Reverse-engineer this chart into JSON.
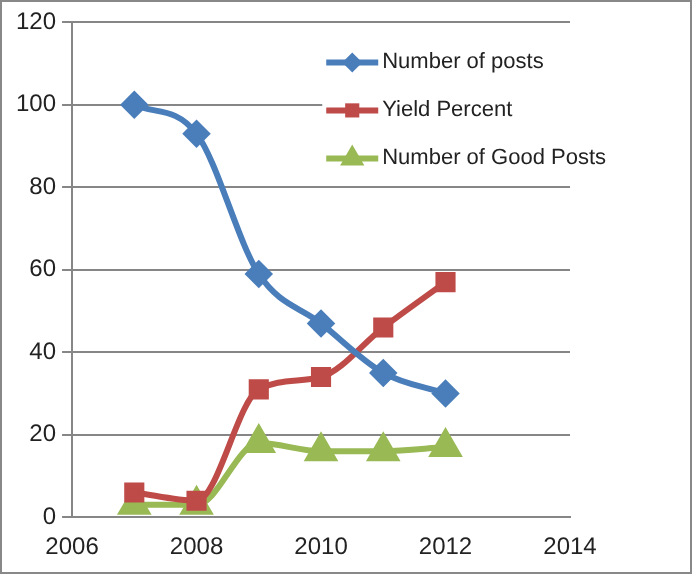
{
  "chart_data": {
    "type": "line",
    "x": [
      2007,
      2008,
      2009,
      2010,
      2011,
      2012
    ],
    "series": [
      {
        "name": "Number of posts",
        "color": "#4a7ebb",
        "marker": "diamond",
        "values": [
          100,
          93,
          59,
          47,
          35,
          30
        ]
      },
      {
        "name": "Yield Percent",
        "color": "#be4b48",
        "marker": "square",
        "values": [
          6,
          4,
          31,
          34,
          46,
          57
        ]
      },
      {
        "name": "Number of Good Posts",
        "color": "#98b954",
        "marker": "triangle",
        "values": [
          3,
          3,
          18,
          16,
          16,
          17
        ]
      }
    ],
    "xlim": [
      2006,
      2014
    ],
    "xticks": [
      2006,
      2008,
      2010,
      2012,
      2014
    ],
    "ylim": [
      0,
      120
    ],
    "yticks": [
      0,
      20,
      40,
      60,
      80,
      100,
      120
    ],
    "grid": "y",
    "legend": "top right",
    "line_style": "solid"
  }
}
